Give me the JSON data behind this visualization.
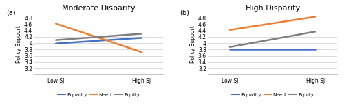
{
  "panel_a": {
    "title": "Moderate Disparity",
    "label": "(a)",
    "lines": {
      "Equality": {
        "x": [
          0,
          1
        ],
        "y": [
          3.99,
          4.17
        ],
        "color": "#4472C4"
      },
      "Need": {
        "x": [
          0,
          1
        ],
        "y": [
          4.62,
          3.72
        ],
        "color": "#ED7D31"
      },
      "Equity": {
        "x": [
          0,
          1
        ],
        "y": [
          4.1,
          4.3
        ],
        "color": "#7F7F7F"
      }
    }
  },
  "panel_b": {
    "title": "High Disparity",
    "label": "(b)",
    "lines": {
      "Equality": {
        "x": [
          0,
          1
        ],
        "y": [
          3.82,
          3.82
        ],
        "color": "#4472C4"
      },
      "Need": {
        "x": [
          0,
          1
        ],
        "y": [
          4.42,
          4.84
        ],
        "color": "#ED7D31"
      },
      "Equity": {
        "x": [
          0,
          1
        ],
        "y": [
          3.88,
          4.37
        ],
        "color": "#7F7F7F"
      }
    }
  },
  "xtick_labels": [
    "Low SJ",
    "High SJ"
  ],
  "ylabel": "Policy Support",
  "ylim": [
    3.0,
    4.95
  ],
  "yticks": [
    3.2,
    3.4,
    3.6,
    3.8,
    4.0,
    4.2,
    4.4,
    4.6,
    4.8
  ],
  "ytick_labels": [
    "3.2",
    "3.4",
    "3.6",
    "3.8",
    "4",
    "4.2",
    "4.4",
    "4.6",
    "4.8"
  ],
  "legend_order": [
    "Equality",
    "Need",
    "Equity"
  ],
  "legend_colors": {
    "Equality": "#4472C4",
    "Need": "#ED7D31",
    "Equity": "#7F7F7F"
  },
  "background_color": "#ffffff",
  "linewidth": 1.8
}
